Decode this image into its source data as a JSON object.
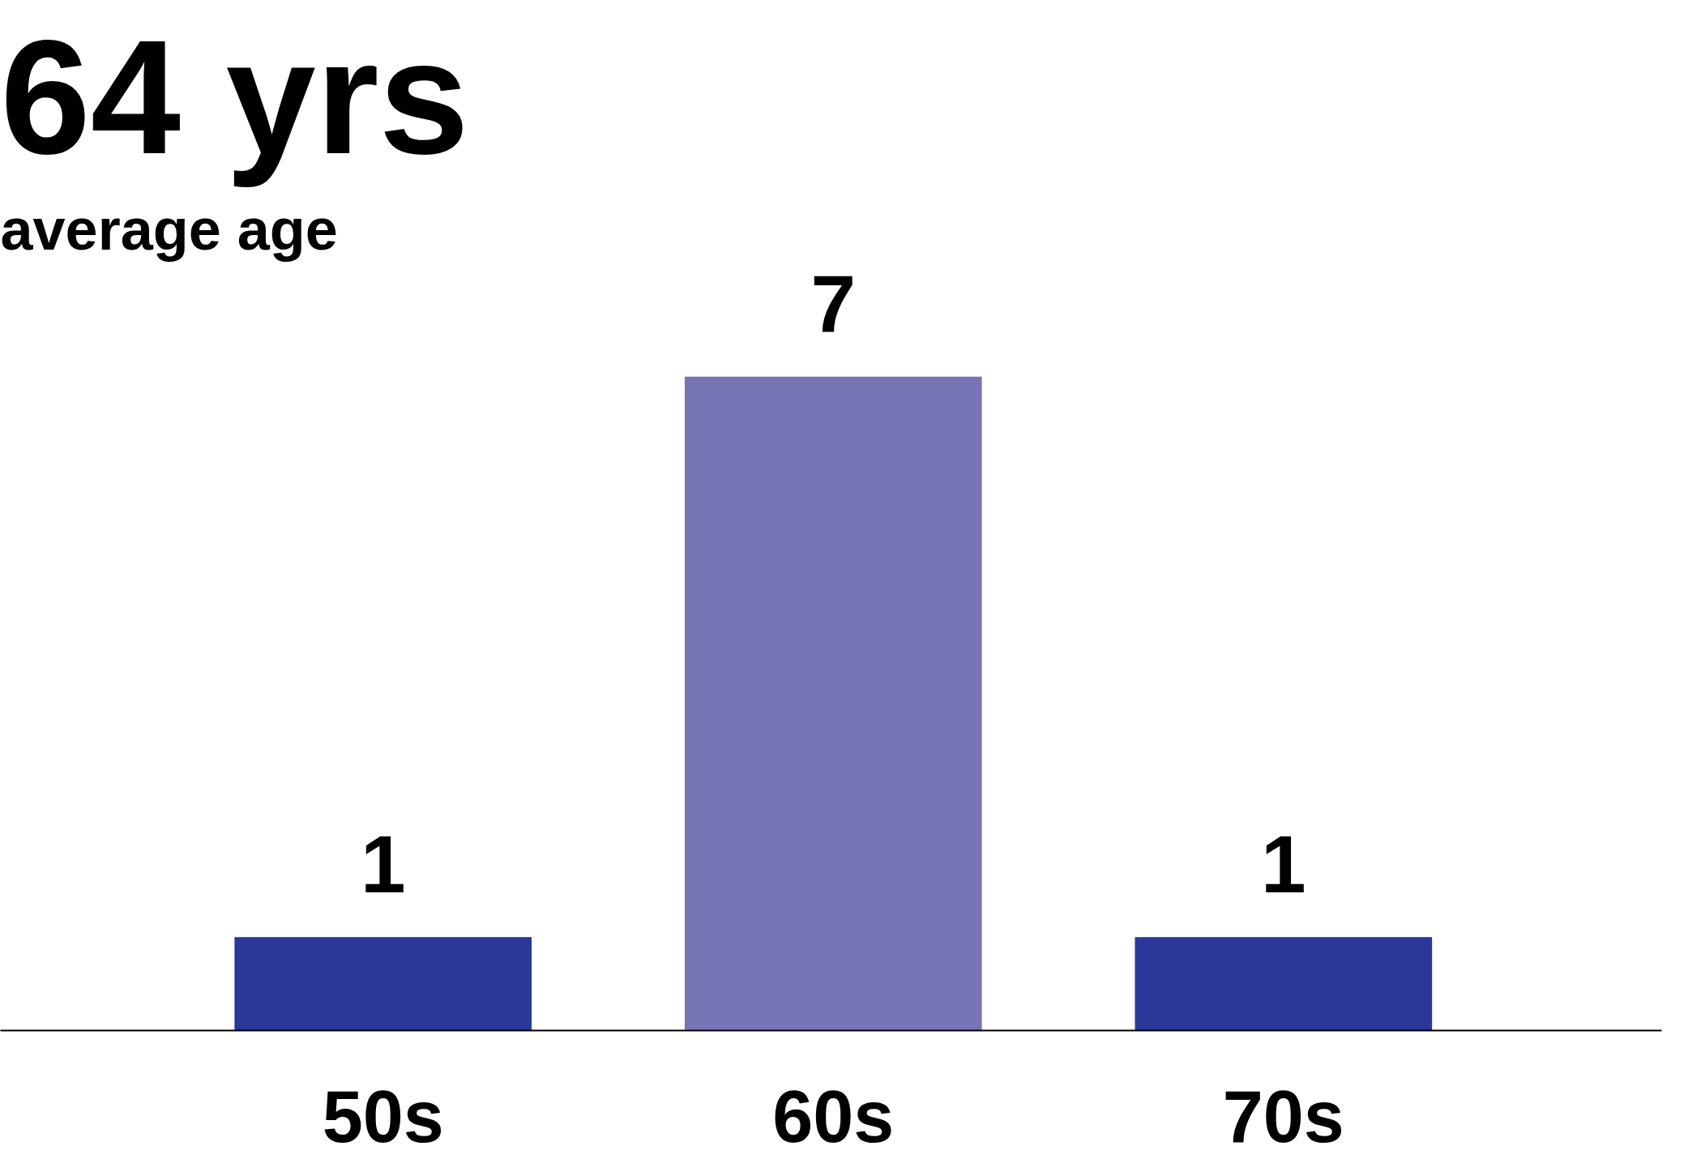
{
  "chart_data": {
    "type": "bar",
    "title": "64 yrs",
    "subtitle": "average age",
    "categories": [
      "50s",
      "60s",
      "70s"
    ],
    "values": [
      1,
      7,
      1
    ],
    "colors": [
      "#2b3898",
      "#7674b4",
      "#2b3898"
    ],
    "data_labels": true,
    "grid": false
  }
}
